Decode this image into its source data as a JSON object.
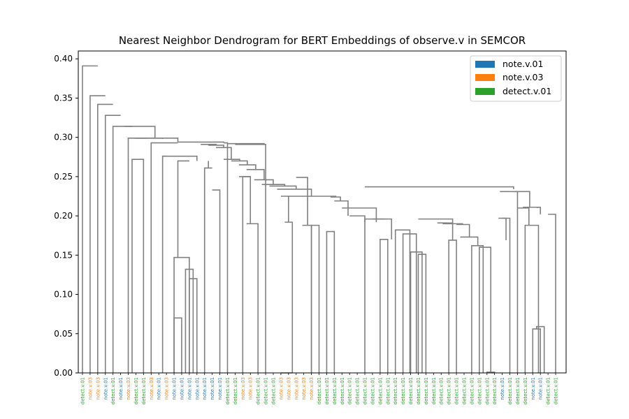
{
  "chart_data": {
    "type": "dendrogram",
    "title": "Nearest Neighbor Dendrogram for BERT Embeddings of observe.v in SEMCOR",
    "xlabel": "",
    "ylabel": "",
    "ylim": [
      0,
      0.41
    ],
    "yticks": [
      "0.00",
      "0.05",
      "0.10",
      "0.15",
      "0.20",
      "0.25",
      "0.30",
      "0.35",
      "0.40"
    ],
    "ytick_values": [
      0,
      0.05,
      0.1,
      0.15,
      0.2,
      0.25,
      0.3,
      0.35,
      0.4
    ],
    "link_color": "#808080",
    "legend": {
      "placement": "top-right",
      "entries": [
        {
          "name": "note.v.01",
          "color": "#1f77b4"
        },
        {
          "name": "note.v.03",
          "color": "#ff7f0e"
        },
        {
          "name": "detect.v.01",
          "color": "#2ca02c"
        }
      ]
    },
    "sense_colors": {
      "note.v.01": "#1f77b4",
      "note.v.03": "#ff7f0e",
      "detect.v.01": "#2ca02c"
    },
    "leaves": [
      "detect.v.01",
      "note.v.03",
      "note.v.03",
      "note.v.01",
      "detect.v.01",
      "note.v.01",
      "note.v.03",
      "detect.v.01",
      "detect.v.01",
      "note.v.03",
      "note.v.01",
      "note.v.03",
      "note.v.01",
      "note.v.01",
      "note.v.01",
      "note.v.01",
      "note.v.01",
      "note.v.01",
      "note.v.01",
      "detect.v.01",
      "detect.v.01",
      "note.v.03",
      "note.v.03",
      "detect.v.01",
      "detect.v.01",
      "detect.v.01",
      "note.v.03",
      "note.v.03",
      "note.v.03",
      "note.v.03",
      "note.v.03",
      "detect.v.01",
      "detect.v.01",
      "detect.v.01",
      "detect.v.01",
      "detect.v.01",
      "detect.v.01",
      "detect.v.01",
      "detect.v.01",
      "detect.v.01",
      "detect.v.01",
      "detect.v.01",
      "detect.v.01",
      "detect.v.01",
      "detect.v.01",
      "detect.v.01",
      "detect.v.01",
      "detect.v.01",
      "detect.v.01",
      "detect.v.01",
      "detect.v.01",
      "detect.v.01",
      "detect.v.01",
      "detect.v.01",
      "detect.v.01",
      "note.v.01",
      "detect.v.01",
      "detect.v.01",
      "detect.v.01",
      "note.v.01",
      "note.v.01",
      "detect.v.01",
      "detect.v.01"
    ],
    "merges": [
      {
        "left": 53,
        "right": 54,
        "height": 0.001
      },
      {
        "left": 59,
        "right": 60,
        "height": 0.056
      },
      {
        "left": "c1",
        "right": 60.5,
        "height": 0.059
      },
      {
        "left": 12,
        "right": 13,
        "height": 0.07
      },
      {
        "left": 14,
        "right": 15,
        "height": 0.12
      },
      {
        "left": 13.5,
        "right": 14.5,
        "height": 0.132
      },
      {
        "left": 12,
        "right": 14,
        "height": 0.147
      },
      {
        "left": 44,
        "right": 45,
        "height": 0.151
      },
      {
        "left": 43,
        "right": 44.5,
        "height": 0.154
      },
      {
        "left": "c0",
        "right": 52,
        "height": 0.16
      },
      {
        "left": 51,
        "right": 52.5,
        "height": 0.162
      },
      {
        "left": 48,
        "right": 49,
        "height": 0.169
      },
      {
        "left": 39,
        "right": 40,
        "height": 0.17
      },
      {
        "left": 42,
        "right": 43.75,
        "height": 0.177
      },
      {
        "left": 32,
        "right": 33,
        "height": 0.18
      },
      {
        "left": 41,
        "right": 42.9,
        "height": 0.182
      },
      {
        "left": 30,
        "right": 31,
        "height": 0.188
      },
      {
        "left": 58,
        "right": 59.75,
        "height": 0.188
      }
    ]
  }
}
